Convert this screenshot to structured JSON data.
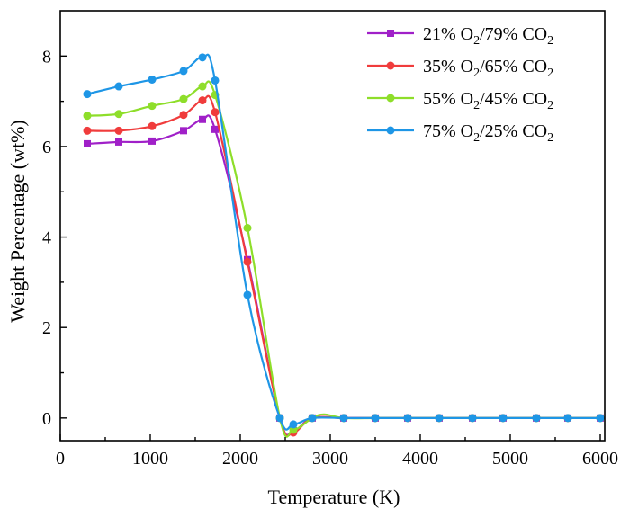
{
  "chart_data": {
    "type": "line",
    "title": "",
    "xlabel": "Temperature  (K)",
    "ylabel": "Weight Percentage (wt%)",
    "xlim": [
      0,
      6050
    ],
    "ylim": [
      -0.5,
      9.0
    ],
    "x_ticks": [
      0,
      1000,
      2000,
      3000,
      4000,
      5000,
      6000
    ],
    "y_ticks": [
      0,
      2,
      4,
      6,
      8
    ],
    "legend_position": "top-right",
    "grid": false,
    "series": [
      {
        "name": "21% O2/79% CO2",
        "legend_base": "21% O",
        "legend_mid": "/79% CO",
        "sub": "2",
        "color": "#a020c8",
        "marker": "square",
        "points": [
          [
            300,
            6.06
          ],
          [
            650,
            6.1
          ],
          [
            1020,
            6.12
          ],
          [
            1370,
            6.35
          ],
          [
            1580,
            6.6
          ],
          [
            1720,
            6.38
          ],
          [
            2080,
            3.5
          ],
          [
            2440,
            0.0
          ],
          [
            2590,
            -0.28
          ],
          [
            2800,
            0.0
          ],
          [
            3150,
            0.0
          ],
          [
            3500,
            0.0
          ],
          [
            3860,
            0.0
          ],
          [
            4210,
            0.0
          ],
          [
            4580,
            0.0
          ],
          [
            4920,
            0.0
          ],
          [
            5290,
            0.0
          ],
          [
            5640,
            0.0
          ],
          [
            6000,
            0.0
          ]
        ]
      },
      {
        "name": "35% O2/65% CO2",
        "legend_base": "35% O",
        "legend_mid": "/65% CO",
        "sub": "2",
        "color": "#f03c3c",
        "marker": "circle",
        "points": [
          [
            300,
            6.35
          ],
          [
            650,
            6.35
          ],
          [
            1020,
            6.45
          ],
          [
            1370,
            6.7
          ],
          [
            1580,
            7.02
          ],
          [
            1720,
            6.76
          ],
          [
            2080,
            3.45
          ],
          [
            2440,
            0.0
          ],
          [
            2590,
            -0.32
          ],
          [
            2800,
            0.0
          ],
          [
            3150,
            0.0
          ],
          [
            3500,
            0.0
          ],
          [
            3860,
            0.0
          ],
          [
            4210,
            0.0
          ],
          [
            4580,
            0.0
          ],
          [
            4920,
            0.0
          ],
          [
            5290,
            0.0
          ],
          [
            5640,
            0.0
          ],
          [
            6000,
            0.0
          ]
        ]
      },
      {
        "name": "55% O2/45% CO2",
        "legend_base": "55% O",
        "legend_mid": "/45% CO",
        "sub": "2",
        "color": "#8ede2a",
        "marker": "circle",
        "points": [
          [
            300,
            6.68
          ],
          [
            650,
            6.72
          ],
          [
            1020,
            6.9
          ],
          [
            1370,
            7.05
          ],
          [
            1580,
            7.33
          ],
          [
            1720,
            7.14
          ],
          [
            2080,
            4.2
          ],
          [
            2440,
            0.0
          ],
          [
            2590,
            -0.26
          ],
          [
            2800,
            0.0
          ],
          [
            2930,
            0.08
          ],
          [
            3150,
            0.0
          ],
          [
            3500,
            0.0
          ],
          [
            3860,
            0.0
          ],
          [
            4210,
            0.0
          ],
          [
            4580,
            0.0
          ],
          [
            4920,
            0.0
          ],
          [
            5290,
            0.0
          ],
          [
            5640,
            0.0
          ],
          [
            6000,
            0.0
          ]
        ]
      },
      {
        "name": "75% O2/25% CO2",
        "legend_base": "75% O",
        "legend_mid": "/25% CO",
        "sub": "2",
        "color": "#1e96e6",
        "marker": "circle",
        "points": [
          [
            300,
            7.16
          ],
          [
            650,
            7.33
          ],
          [
            1020,
            7.48
          ],
          [
            1370,
            7.67
          ],
          [
            1580,
            7.97
          ],
          [
            1720,
            7.46
          ],
          [
            2080,
            2.72
          ],
          [
            2440,
            0.0
          ],
          [
            2590,
            -0.14
          ],
          [
            2800,
            0.0
          ],
          [
            3150,
            0.0
          ],
          [
            3500,
            0.0
          ],
          [
            3860,
            0.0
          ],
          [
            4210,
            0.0
          ],
          [
            4580,
            0.0
          ],
          [
            4920,
            0.0
          ],
          [
            5290,
            0.0
          ],
          [
            5640,
            0.0
          ],
          [
            6000,
            0.0
          ]
        ]
      }
    ]
  }
}
